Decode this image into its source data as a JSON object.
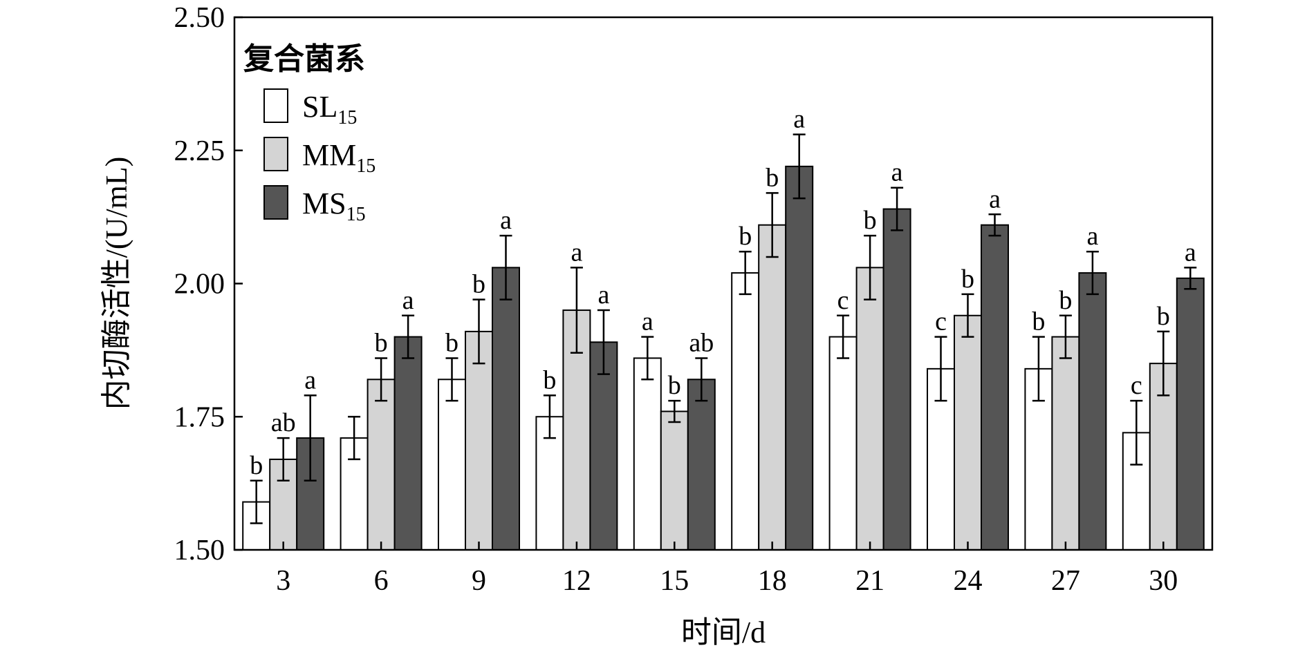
{
  "chart_data": {
    "type": "bar",
    "xlabel": "时间/d",
    "ylabel": "内切酶活性/(U/mL)",
    "ylim": [
      1.5,
      2.5
    ],
    "yticks": [
      "1.50",
      "1.75",
      "2.00",
      "2.25",
      "2.50"
    ],
    "categories": [
      "3",
      "6",
      "9",
      "12",
      "15",
      "18",
      "21",
      "24",
      "27",
      "30"
    ],
    "legend": {
      "title": "复合菌系",
      "placement": "top-left",
      "entries": [
        {
          "base": "SL",
          "sub": "15"
        },
        {
          "base": "MM",
          "sub": "15"
        },
        {
          "base": "MS",
          "sub": "15"
        }
      ]
    },
    "series": [
      {
        "color": "#ffffff",
        "values": [
          1.59,
          1.71,
          1.82,
          1.75,
          1.86,
          2.02,
          1.9,
          1.84,
          1.84,
          1.72
        ],
        "errors": [
          0.04,
          0.04,
          0.04,
          0.04,
          0.04,
          0.04,
          0.04,
          0.06,
          0.06,
          0.06
        ],
        "letters": [
          "b",
          "",
          "b",
          "b",
          "a",
          "b",
          "c",
          "c",
          "b",
          "c"
        ]
      },
      {
        "color": "#d4d4d4",
        "values": [
          1.67,
          1.82,
          1.91,
          1.95,
          1.76,
          2.11,
          2.03,
          1.94,
          1.9,
          1.85
        ],
        "errors": [
          0.04,
          0.04,
          0.06,
          0.08,
          0.02,
          0.06,
          0.06,
          0.04,
          0.04,
          0.06
        ],
        "letters": [
          "ab",
          "b",
          "b",
          "a",
          "b",
          "b",
          "b",
          "b",
          "b",
          "b"
        ]
      },
      {
        "color": "#555555",
        "values": [
          1.71,
          1.9,
          2.03,
          1.89,
          1.82,
          2.22,
          2.14,
          2.11,
          2.02,
          2.01
        ],
        "errors": [
          0.08,
          0.04,
          0.06,
          0.06,
          0.04,
          0.06,
          0.04,
          0.02,
          0.04,
          0.02
        ],
        "letters": [
          "a",
          "a",
          "a",
          "a",
          "ab",
          "a",
          "a",
          "a",
          "a",
          "a"
        ]
      }
    ]
  }
}
